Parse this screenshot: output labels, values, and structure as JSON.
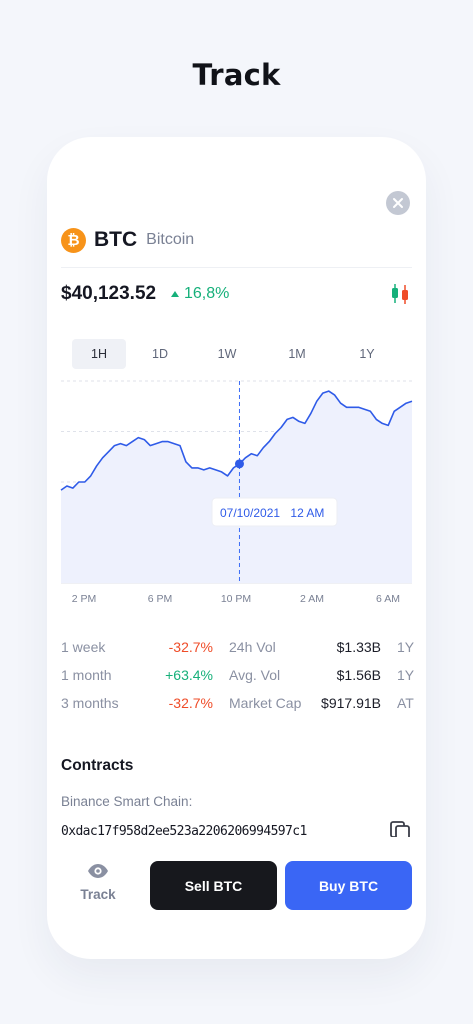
{
  "page": {
    "heading": "Track"
  },
  "coin": {
    "symbol": "BTC",
    "name": "Bitcoin",
    "logo_color": "#f7931a",
    "logo_glyph": "₿"
  },
  "price": {
    "value": "$40,123.52",
    "change": "16,8%",
    "direction": "up"
  },
  "timeframes": [
    {
      "label": "1H",
      "active": true
    },
    {
      "label": "1D",
      "active": false
    },
    {
      "label": "1W",
      "active": false
    },
    {
      "label": "1M",
      "active": false
    },
    {
      "label": "1Y",
      "active": false
    }
  ],
  "chart_data": {
    "type": "area",
    "x_tick_labels": [
      "2 PM",
      "6 PM",
      "10 PM",
      "2 AM",
      "6 AM"
    ],
    "values": [
      46,
      48,
      47,
      50,
      50,
      53,
      58,
      62,
      65,
      68,
      69,
      68,
      70,
      72,
      71,
      68,
      69,
      70,
      70,
      69,
      68,
      60,
      57,
      57,
      56,
      57,
      56,
      55,
      53,
      57,
      59,
      62,
      64,
      63,
      67,
      70,
      74,
      77,
      81,
      82,
      80,
      79,
      84,
      90,
      94,
      95,
      93,
      89,
      87,
      87,
      87,
      86,
      85,
      81,
      79,
      78,
      85,
      87,
      89,
      90
    ],
    "y_gridlines": 4,
    "grid": true,
    "tooltip": {
      "date": "07/10/2021",
      "time": "12 AM"
    },
    "colors": {
      "line": "#2f5be8",
      "fill": "#eef1fd",
      "grid": "#dfe2ea",
      "crosshair": "#3b6cf6"
    }
  },
  "stats": [
    {
      "period": "1 week",
      "change": "-32.7%",
      "trend": "neg",
      "metric": "24h Vol",
      "value": "$1.33B",
      "extra": "1Y"
    },
    {
      "period": "1 month",
      "change": "+63.4%",
      "trend": "pos",
      "metric": "Avg. Vol",
      "value": "$1.56B",
      "extra": "1Y"
    },
    {
      "period": "3 months",
      "change": "-32.7%",
      "trend": "neg",
      "metric": "Market Cap",
      "value": "$917.91B",
      "extra": "AT"
    }
  ],
  "contracts": {
    "title": "Contracts",
    "chain": "Binance Smart Chain:",
    "address": "0xdac17f958d2ee523a2206206994597c1"
  },
  "actions": {
    "track_label": "Track",
    "sell_label": "Sell BTC",
    "buy_label": "Buy BTC"
  },
  "colors": {
    "accent": "#3a66f5",
    "positive": "#16b07a",
    "negative": "#ef4c28",
    "background": "#f4f6fb"
  }
}
